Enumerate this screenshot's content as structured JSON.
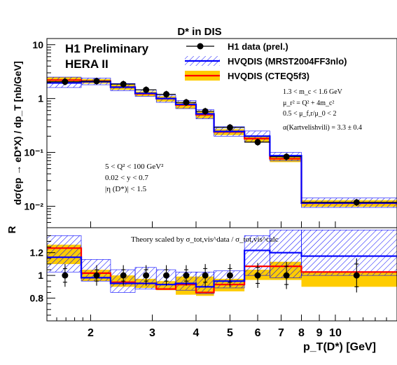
{
  "chart_data": [
    {
      "type": "line",
      "title": "D* in DIS",
      "ylabel": "dσ(ep → eD*X) / dp_T [nb/GeV]",
      "yscale": "log",
      "ylim": [
        0.004,
        13
      ],
      "xscale": "log",
      "xlim": [
        1.5,
        15
      ],
      "y_ticks": [
        "10",
        "1",
        "10⁻¹",
        "10⁻²"
      ],
      "tags": [
        "H1 Preliminary",
        "HERA II"
      ],
      "legend_position": "top-right",
      "legend": [
        "H1 data (prel.)",
        "HVQDIS (MRST2004FF3nlo)",
        "HVQDIS (CTEQ5f3)"
      ],
      "annotations": [
        "1.3 < m_c < 1.6 GeV",
        "μ_r² = Q² + 4m_c²",
        "0.5 < μ_f,r/μ_0 < 2",
        "α(Kartvelishvili) = 3.3 ± 0.4",
        "5 < Q² < 100 GeV²",
        "0.02 < y < 0.7",
        "|η (D*)| < 1.5"
      ],
      "bin_edges": [
        1.5,
        1.88,
        2.28,
        2.68,
        3.08,
        3.5,
        4.0,
        4.5,
        5.5,
        6.5,
        8.0,
        15.0
      ],
      "data": {
        "name": "H1 data (prel.)",
        "x": [
          1.69,
          2.08,
          2.48,
          2.88,
          3.29,
          3.75,
          4.25,
          5.0,
          6.0,
          7.25,
          11.5
        ],
        "y": [
          2.05,
          2.1,
          1.85,
          1.45,
          1.2,
          0.85,
          0.58,
          0.29,
          0.155,
          0.083,
          0.0118
        ]
      },
      "series": [
        {
          "name": "HVQDIS (MRST2004FF3nlo)",
          "color": "#0000ff",
          "values": [
            1.95,
            2.05,
            1.62,
            1.25,
            1.0,
            0.78,
            0.52,
            0.245,
            0.2,
            0.087,
            0.0115
          ],
          "band_low": [
            1.6,
            1.8,
            1.4,
            1.1,
            0.85,
            0.65,
            0.42,
            0.2,
            0.155,
            0.07,
            0.0095
          ],
          "band_high": [
            2.5,
            2.4,
            1.9,
            1.45,
            1.15,
            0.92,
            0.62,
            0.3,
            0.25,
            0.1,
            0.0142
          ]
        },
        {
          "name": "HVQDIS (CTEQ5f3)",
          "color": "#ff0000",
          "values": [
            2.2,
            2.1,
            1.63,
            1.23,
            1.0,
            0.76,
            0.5,
            0.24,
            0.18,
            0.076,
            0.0114
          ],
          "band_low": [
            1.9,
            1.9,
            1.45,
            1.1,
            0.88,
            0.65,
            0.43,
            0.21,
            0.155,
            0.066,
            0.0098
          ],
          "band_high": [
            2.5,
            2.3,
            1.8,
            1.35,
            1.1,
            0.86,
            0.57,
            0.27,
            0.205,
            0.088,
            0.013
          ]
        }
      ]
    },
    {
      "type": "line",
      "ylabel": "R",
      "ylim": [
        0.6,
        1.42
      ],
      "y_ticks": [
        "1.2",
        "1",
        "0.8"
      ],
      "xscale": "log",
      "xlim": [
        1.5,
        15
      ],
      "xlabel": "p_T(D*) [GeV]",
      "x_ticks": [
        "2",
        "3",
        "4",
        "5",
        "6",
        "7",
        "8",
        "9",
        "10"
      ],
      "annotation": "Theory scaled by σ_tot,vis^data / σ_tot,vis^calc",
      "bin_edges": [
        1.5,
        1.88,
        2.28,
        2.68,
        3.08,
        3.5,
        4.0,
        4.5,
        5.5,
        6.5,
        8.0,
        15.0
      ],
      "data": {
        "x": [
          1.69,
          2.08,
          2.48,
          2.88,
          3.29,
          3.75,
          4.25,
          5.0,
          6.0,
          7.25,
          11.5
        ],
        "y": [
          1.0,
          1.0,
          1.0,
          1.0,
          1.0,
          1.0,
          1.0,
          1.0,
          1.0,
          1.0,
          1.0
        ],
        "err_inner": [
          0.06,
          0.05,
          0.05,
          0.05,
          0.05,
          0.05,
          0.06,
          0.06,
          0.07,
          0.08,
          0.1
        ],
        "err_outer": [
          0.1,
          0.09,
          0.09,
          0.09,
          0.09,
          0.09,
          0.1,
          0.1,
          0.11,
          0.12,
          0.15
        ]
      },
      "series": [
        {
          "name": "HVQDIS (MRST2004FF3nlo)",
          "color": "#0000ff",
          "values": [
            1.16,
            0.98,
            0.93,
            0.93,
            0.92,
            0.93,
            0.9,
            0.95,
            1.22,
            1.2,
            1.17
          ],
          "band_low": [
            1.03,
            0.95,
            0.85,
            0.88,
            0.88,
            0.87,
            0.84,
            0.89,
            1.0,
            0.98,
            1.0
          ],
          "band_high": [
            1.35,
            1.14,
            1.05,
            1.07,
            1.05,
            1.03,
            1.03,
            1.04,
            1.35,
            1.4,
            1.4
          ]
        },
        {
          "name": "HVQDIS (CTEQ5f3)",
          "color": "#ff0000",
          "values": [
            1.24,
            1.02,
            0.94,
            0.93,
            0.88,
            0.92,
            0.85,
            0.92,
            1.08,
            1.08,
            1.03
          ],
          "band_low": [
            1.1,
            0.95,
            0.9,
            0.89,
            0.87,
            0.83,
            0.82,
            0.86,
            0.96,
            0.96,
            0.9
          ],
          "band_high": [
            1.27,
            1.05,
            1.0,
            0.97,
            0.95,
            0.99,
            0.99,
            0.97,
            1.05,
            1.12,
            1.03
          ]
        }
      ]
    }
  ]
}
